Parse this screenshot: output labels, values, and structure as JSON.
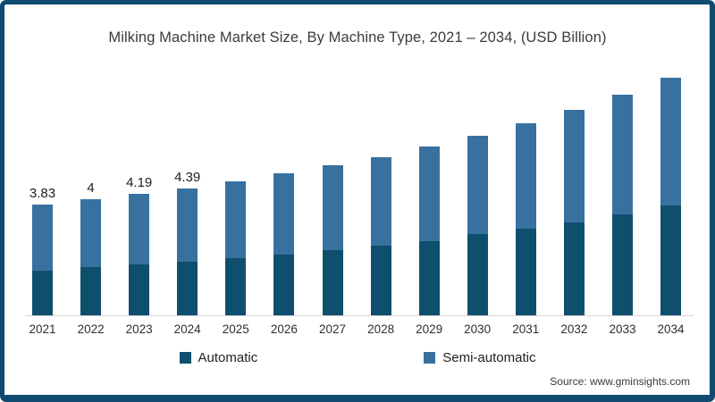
{
  "frame": {
    "border_color": "#114a70",
    "background_color": "#ffffff"
  },
  "title": "Milking Machine Market Size, By Machine Type, 2021 – 2034, (USD Billion)",
  "source": "Source: www.gminsights.com",
  "legend": {
    "position": "bottom",
    "entries": [
      {
        "label": "Automatic",
        "color": "#0f4f6e"
      },
      {
        "label": "Semi-automatic",
        "color": "#38719f"
      }
    ]
  },
  "chart_data": {
    "type": "bar",
    "stacked": true,
    "title": "Milking Machine Market Size, By Machine Type, 2021 – 2034, (USD Billion)",
    "xlabel": "",
    "ylabel": "USD Billion",
    "ylim": [
      0,
      8.6
    ],
    "grid": false,
    "legend_position": "bottom",
    "categories": [
      "2021",
      "2022",
      "2023",
      "2024",
      "2025",
      "2026",
      "2027",
      "2028",
      "2029",
      "2030",
      "2031",
      "2032",
      "2033",
      "2034"
    ],
    "series": [
      {
        "name": "Automatic",
        "color": "#0f4f6e",
        "values": [
          1.54,
          1.66,
          1.76,
          1.86,
          1.97,
          2.11,
          2.25,
          2.4,
          2.57,
          2.8,
          2.99,
          3.22,
          3.49,
          3.8
        ]
      },
      {
        "name": "Semi-automatic",
        "color": "#38719f",
        "values": [
          2.29,
          2.34,
          2.43,
          2.53,
          2.66,
          2.8,
          2.94,
          3.06,
          3.26,
          3.4,
          3.65,
          3.88,
          4.13,
          4.41
        ]
      }
    ],
    "totals": [
      3.83,
      4.0,
      4.19,
      4.39,
      4.63,
      4.91,
      5.19,
      5.46,
      5.83,
      6.2,
      6.64,
      7.1,
      7.62,
      8.21
    ],
    "visible_total_labels": [
      "3.83",
      "4",
      "4.19",
      "4.39",
      "",
      "",
      "",
      "",
      "",
      "",
      "",
      "",
      "",
      ""
    ]
  }
}
